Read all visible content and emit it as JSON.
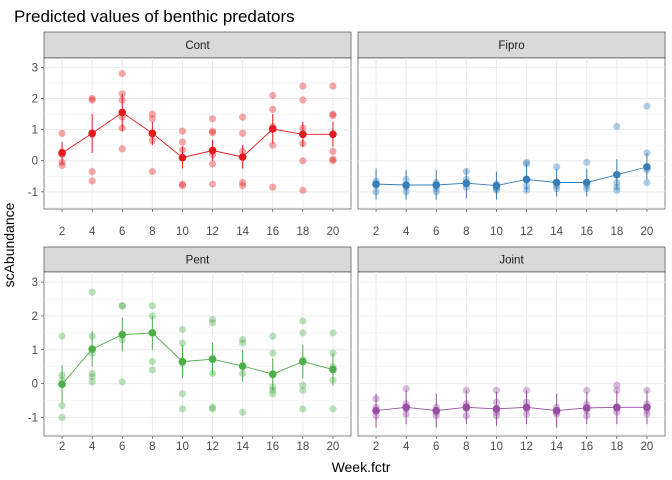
{
  "chart_data": {
    "type": "scatter",
    "title": "Predicted values of benthic predators",
    "xlabel": "Week.fctr",
    "ylabel": "scAbundance",
    "categories": [
      "2",
      "4",
      "6",
      "8",
      "10",
      "12",
      "14",
      "16",
      "18",
      "20"
    ],
    "ylim": [
      -1.55,
      3.3
    ],
    "yticks": [
      -1,
      0,
      1,
      2,
      3
    ],
    "grid": true,
    "panels": [
      {
        "name": "Cont",
        "color": "#e41a1c",
        "predicted": [
          0.25,
          0.88,
          1.55,
          0.88,
          0.1,
          0.33,
          0.12,
          1.02,
          0.85,
          0.85
        ],
        "ci_low": [
          -0.1,
          0.25,
          0.95,
          0.5,
          -0.25,
          0.0,
          -0.25,
          0.55,
          0.45,
          0.45
        ],
        "ci_high": [
          0.6,
          1.5,
          2.15,
          1.25,
          0.45,
          0.68,
          0.5,
          1.5,
          1.25,
          1.25
        ],
        "observed": [
          [
            0.88,
            0.28,
            0.2,
            -0.05,
            -0.15
          ],
          [
            2.0,
            1.95,
            -0.35,
            -0.65,
            0.85
          ],
          [
            2.8,
            2.15,
            1.95,
            1.4,
            1.05,
            0.38
          ],
          [
            1.5,
            1.35,
            0.85,
            0.65,
            -0.35
          ],
          [
            0.95,
            0.6,
            0.35,
            -0.75,
            -0.8
          ],
          [
            1.35,
            0.95,
            0.9,
            0.2,
            -0.1,
            -0.75
          ],
          [
            1.4,
            0.88,
            0.3,
            -0.7,
            -0.8
          ],
          [
            2.1,
            1.65,
            1.1,
            0.5,
            -0.85
          ],
          [
            2.4,
            1.95,
            1.05,
            0.55,
            0.0,
            -0.95
          ],
          [
            2.4,
            1.5,
            1.45,
            0.3,
            0.05,
            0.0
          ]
        ]
      },
      {
        "name": "Fipro",
        "color": "#377eb8",
        "predicted": [
          -0.75,
          -0.78,
          -0.78,
          -0.72,
          -0.8,
          -0.6,
          -0.7,
          -0.7,
          -0.45,
          -0.2
        ],
        "ci_low": [
          -1.25,
          -1.25,
          -1.25,
          -1.2,
          -1.25,
          -1.0,
          -1.15,
          -1.15,
          -0.9,
          -0.6
        ],
        "ci_high": [
          -0.25,
          -0.3,
          -0.3,
          -0.25,
          -0.35,
          -0.1,
          -0.25,
          -0.25,
          0.05,
          0.25
        ],
        "observed": [
          [
            -0.65,
            -0.75,
            -0.8,
            -1.0
          ],
          [
            -0.6,
            -0.8,
            -0.85,
            -1.0
          ],
          [
            -0.7,
            -0.8,
            -0.9,
            -1.0
          ],
          [
            -0.35,
            -0.6,
            -0.75,
            -0.85
          ],
          [
            -0.75,
            -0.85,
            -0.9,
            -0.95
          ],
          [
            -0.05,
            -0.1,
            -0.8,
            -0.95
          ],
          [
            -0.2,
            -0.7,
            -0.8,
            -0.9
          ],
          [
            -0.05,
            -0.7,
            -0.8,
            -0.9
          ],
          [
            1.1,
            -0.7,
            -0.85,
            -0.95
          ],
          [
            1.75,
            0.25,
            -0.3,
            -0.7
          ]
        ]
      },
      {
        "name": "Pent",
        "color": "#4daf4a",
        "predicted": [
          -0.02,
          1.02,
          1.45,
          1.5,
          0.65,
          0.72,
          0.52,
          0.28,
          0.65,
          0.42
        ],
        "ci_low": [
          -0.55,
          0.5,
          0.95,
          1.0,
          0.15,
          0.25,
          0.05,
          -0.2,
          0.15,
          -0.05
        ],
        "ci_high": [
          0.55,
          1.55,
          1.95,
          2.0,
          1.15,
          1.2,
          1.0,
          0.75,
          1.15,
          0.9
        ],
        "observed": [
          [
            1.4,
            0.25,
            0.1,
            -0.65,
            -1.0
          ],
          [
            2.7,
            1.4,
            0.9,
            0.3,
            0.2,
            0.05
          ],
          [
            2.3,
            2.3,
            1.45,
            1.3,
            0.05
          ],
          [
            2.3,
            2.0,
            1.5,
            0.65,
            0.4
          ],
          [
            1.6,
            1.2,
            0.6,
            -0.3,
            -0.75
          ],
          [
            1.9,
            1.8,
            0.75,
            0.3,
            -0.7,
            -0.75
          ],
          [
            1.3,
            1.2,
            0.5,
            0.3,
            -0.85
          ],
          [
            1.4,
            0.9,
            0.25,
            -0.1,
            -0.2,
            -0.3
          ],
          [
            1.85,
            1.5,
            0.7,
            -0.05,
            -0.2,
            -0.75
          ],
          [
            1.5,
            0.9,
            0.5,
            0.1,
            -0.75
          ]
        ]
      },
      {
        "name": "Joint",
        "color": "#984ea3",
        "predicted": [
          -0.8,
          -0.7,
          -0.8,
          -0.7,
          -0.75,
          -0.7,
          -0.8,
          -0.72,
          -0.7,
          -0.7
        ],
        "ci_low": [
          -1.3,
          -1.2,
          -1.3,
          -1.2,
          -1.25,
          -1.2,
          -1.3,
          -1.2,
          -1.2,
          -1.2
        ],
        "ci_high": [
          -0.3,
          -0.2,
          -0.3,
          -0.2,
          -0.25,
          -0.2,
          -0.3,
          -0.25,
          -0.2,
          -0.2
        ],
        "observed": [
          [
            -0.45,
            -0.7,
            -0.8,
            -0.95
          ],
          [
            -0.15,
            -0.6,
            -0.75,
            -0.9
          ],
          [
            -0.7,
            -0.8,
            -0.85,
            -0.95
          ],
          [
            -0.2,
            -0.6,
            -0.75,
            -0.95
          ],
          [
            -0.2,
            -0.55,
            -0.85,
            -0.95
          ],
          [
            -0.2,
            -0.55,
            -0.75,
            -0.9
          ],
          [
            -0.7,
            -0.8,
            -0.85,
            -0.9
          ],
          [
            -0.2,
            -0.6,
            -0.8,
            -0.95
          ],
          [
            -0.05,
            -0.2,
            -0.75,
            -0.85
          ],
          [
            -0.2,
            -0.6,
            -0.8,
            -0.9
          ]
        ]
      }
    ]
  }
}
